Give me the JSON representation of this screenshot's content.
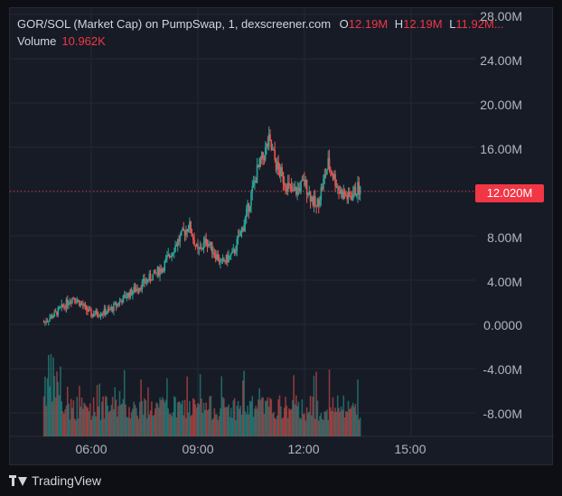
{
  "legend": {
    "title": "GOR/SOL (Market Cap) on PumpSwap, 1, dexscreener.com",
    "o_key": "O",
    "o_val": "12.19M",
    "h_key": "H",
    "h_val": "12.19M",
    "l_key": "L",
    "l_val": "11.92M...",
    "volume_label": "Volume",
    "volume_val": "10.962K"
  },
  "last_price_tag": "12.020M",
  "price_axis_labels": [
    "28.00M",
    "24.00M",
    "20.00M",
    "16.00M",
    "8.00M",
    "4.00M",
    "0.0000",
    "-4.00M",
    "-8.00M"
  ],
  "time_axis_labels": [
    "06:00",
    "09:00",
    "12:00",
    "15:00"
  ],
  "brand": "TradingView",
  "colors": {
    "up": "#26a69a",
    "down": "#ef5350",
    "accent": "#f23645",
    "background": "#171b26",
    "grid": "#242832"
  },
  "icons": {
    "brand": "tradingview-logo-icon"
  },
  "chart_data": {
    "type": "candlestick",
    "y_unit": "market cap (SOL-quoted, M)",
    "ylim": [
      -10,
      28
    ],
    "last_price": 12.02,
    "x_time": [
      "04:40",
      "05:00",
      "05:30",
      "06:00",
      "06:30",
      "07:00",
      "07:30",
      "08:00",
      "08:20",
      "08:45",
      "09:00",
      "09:15",
      "09:40",
      "10:00",
      "10:20",
      "10:40",
      "11:00",
      "11:15",
      "11:40",
      "12:00",
      "12:20",
      "12:40",
      "13:00",
      "13:15",
      "13:30",
      "13:35"
    ],
    "close_M": [
      0.2,
      1.0,
      2.5,
      0.9,
      1.2,
      2.6,
      3.8,
      5.1,
      7.0,
      9.0,
      6.5,
      7.6,
      5.5,
      6.4,
      9.5,
      13.8,
      16.5,
      14.0,
      11.8,
      12.8,
      10.5,
      14.5,
      12.0,
      11.4,
      12.3,
      12.0
    ],
    "volume_profile_note": "",
    "grid": true
  }
}
